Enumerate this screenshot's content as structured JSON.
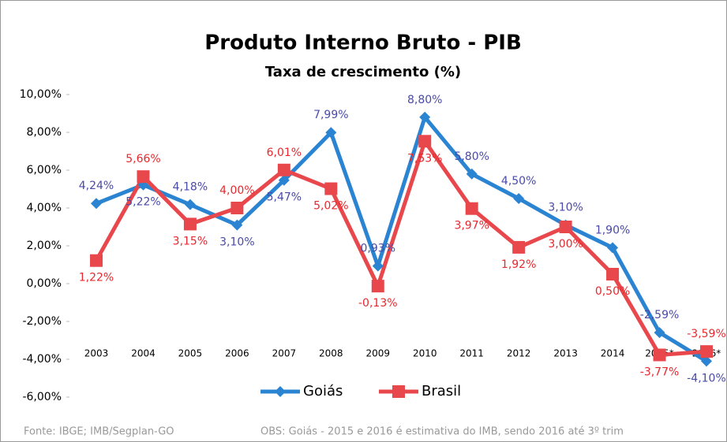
{
  "chart_data": {
    "type": "line",
    "title": "Produto Interno Bruto - PIB",
    "subtitle": "Taxa de crescimento (%)",
    "categories": [
      "2003",
      "2004",
      "2005",
      "2006",
      "2007",
      "2008",
      "2009",
      "2010",
      "2011",
      "2012",
      "2013",
      "2014",
      "2015*",
      "2016*"
    ],
    "series": [
      {
        "name": "Goiás",
        "color": "#2b84d1",
        "label_color": "#4a4aa8",
        "marker": "diamond",
        "values": [
          4.24,
          5.22,
          4.18,
          3.1,
          5.47,
          7.99,
          0.93,
          8.8,
          5.8,
          4.5,
          3.1,
          1.9,
          -2.59,
          -4.1
        ],
        "value_labels": [
          "4,24%",
          "5,22%",
          "4,18%",
          "3,10%",
          "5,47%",
          "7,99%",
          "0,93%",
          "8,80%",
          "5,80%",
          "4,50%",
          "3,10%",
          "1,90%",
          "-2,59%",
          "-4,10%"
        ]
      },
      {
        "name": "Brasil",
        "color": "#e8474c",
        "label_color": "#e8282e",
        "marker": "square",
        "values": [
          1.22,
          5.66,
          3.15,
          4.0,
          6.01,
          5.02,
          -0.13,
          7.53,
          3.97,
          1.92,
          3.0,
          0.5,
          -3.77,
          -3.59
        ],
        "value_labels": [
          "1,22%",
          "5,66%",
          "3,15%",
          "4,00%",
          "6,01%",
          "5,02%",
          "-0,13%",
          "7,53%",
          "3,97%",
          "1,92%",
          "3,00%",
          "0,50%",
          "-3,77%",
          "-3,59%"
        ]
      }
    ],
    "ylim": [
      -6,
      10
    ],
    "yticks": [
      {
        "value": -6,
        "label": "-6,00%"
      },
      {
        "value": -4,
        "label": "-4,00%"
      },
      {
        "value": -2,
        "label": "-2,00%"
      },
      {
        "value": 0,
        "label": "0,00%"
      },
      {
        "value": 2,
        "label": "2,00%"
      },
      {
        "value": 4,
        "label": "4,00%"
      },
      {
        "value": 6,
        "label": "6,00%"
      },
      {
        "value": 8,
        "label": "8,00%"
      },
      {
        "value": 10,
        "label": "10,00%"
      }
    ],
    "legend": "bottom",
    "notes": [
      "Fonte: IBGE; IMB/Segplan-GO",
      "OBS: Goiás - 2015 e 2016 é estimativa do IMB, sendo 2016 até 3º trim"
    ]
  }
}
